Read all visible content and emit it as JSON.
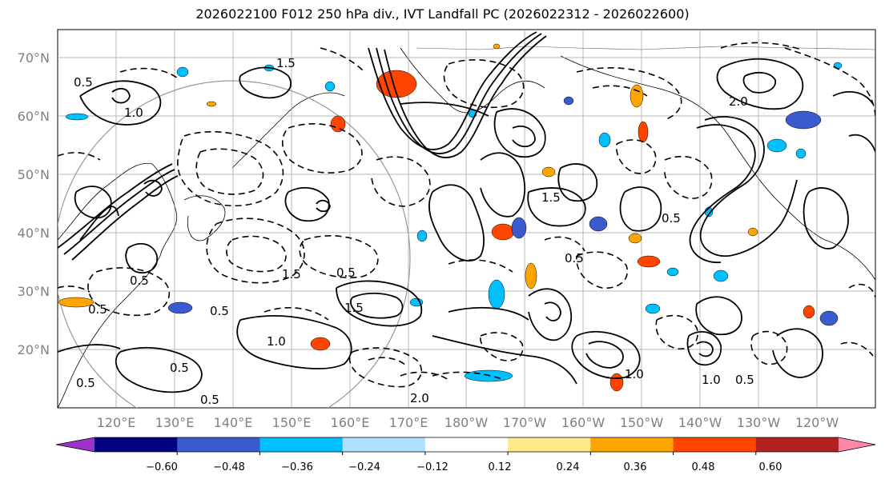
{
  "title": "2026022100 F012 250 hPa div., IVT Landfall PC (2026022312 - 2026022600)",
  "lat_labels": [
    "70°N",
    "60°N",
    "50°N",
    "40°N",
    "30°N",
    "20°N"
  ],
  "lon_labels": [
    "120°E",
    "130°E",
    "140°E",
    "150°E",
    "160°E",
    "170°E",
    "180°W",
    "170°W",
    "160°W",
    "150°W",
    "140°W",
    "130°W",
    "120°W"
  ],
  "contour_labels": [
    "1.5",
    "0.5",
    "1.0",
    "2.0",
    "0.5",
    "1.5",
    "0.5",
    "1.0",
    "0.5",
    "0.5",
    "1.5",
    "0.5",
    "2.0",
    "0.5",
    "1.0",
    "0.5",
    "1.0",
    "0.5",
    "1.5",
    "0.5",
    "0.5"
  ],
  "colorbar": {
    "colors": [
      "#9933cc",
      "#000080",
      "#3a5bcd",
      "#00bfff",
      "#b0e0ff",
      "#ffffff",
      "#ffe88a",
      "#ffa500",
      "#ff4500",
      "#b22222",
      "#ff88aa"
    ],
    "tick_labels": [
      "−0.60",
      "−0.48",
      "−0.36",
      "−0.24",
      "−0.12",
      "0.12",
      "0.24",
      "0.36",
      "0.48",
      "0.60"
    ]
  }
}
